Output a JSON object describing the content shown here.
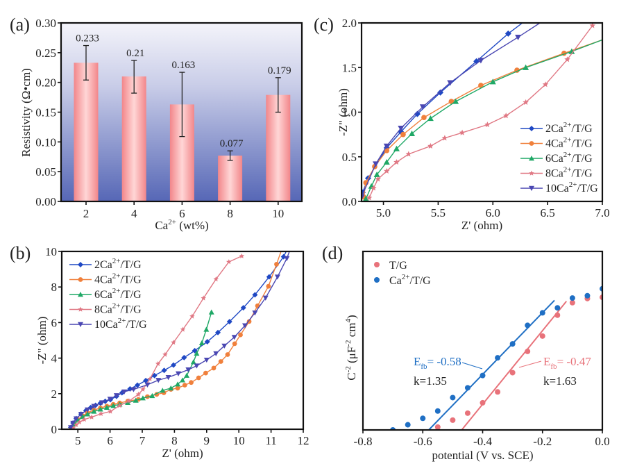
{
  "chart_data": [
    {
      "id": "a",
      "panel_label": "(a)",
      "type": "bar",
      "title": "",
      "xlabel": "Ca",
      "xlabel_sup": "2+",
      "xlabel_suffix": " (wt%)",
      "ylabel": "Resistivity (Ω•cm)",
      "categories": [
        "2",
        "4",
        "6",
        "8",
        "10"
      ],
      "values": [
        0.233,
        0.21,
        0.163,
        0.077,
        0.179
      ],
      "value_labels": [
        "0.233",
        "0.21",
        "0.163",
        "0.077",
        "0.179"
      ],
      "error_low": [
        0.204,
        0.182,
        0.109,
        0.069,
        0.15
      ],
      "error_high": [
        0.262,
        0.237,
        0.217,
        0.085,
        0.208
      ],
      "ylim": [
        0,
        0.3
      ],
      "yticks": [
        "0.00",
        "0.05",
        "0.10",
        "0.15",
        "0.20",
        "0.25",
        "0.30"
      ],
      "grid": false,
      "colors": {
        "bar_edge": "#f2868a",
        "bar_center": "#ffd6d6",
        "bg_top": "#f4f4fa",
        "bg_bottom": "#5667b6",
        "error": "#222222"
      }
    },
    {
      "id": "b",
      "panel_label": "(b)",
      "type": "line",
      "xlabel": "Z' (ohm)",
      "ylabel": "-Z\" (ohm)",
      "xlim": [
        4.5,
        12
      ],
      "ylim": [
        0,
        10
      ],
      "xticks": [
        5,
        6,
        7,
        8,
        9,
        10,
        11,
        12
      ],
      "yticks": [
        0,
        2,
        4,
        6,
        8,
        10
      ],
      "legend_position": "top-left",
      "series": [
        {
          "name": "2Ca2+/T/G",
          "label_pre": "2Ca",
          "label_sup": "2+",
          "label_post": "/T/G",
          "color": "#1f48c4",
          "marker": "diamond",
          "x": [
            4.78,
            4.85,
            4.95,
            5.1,
            5.25,
            5.4,
            5.55,
            5.7,
            5.85,
            6.01,
            6.2,
            6.37,
            6.62,
            6.85,
            7.11,
            7.38,
            7.68,
            7.97,
            8.3,
            8.63,
            9.02,
            9.35,
            9.71,
            10.14,
            10.5,
            10.94,
            11.39,
            11.47
          ],
          "y": [
            0.1,
            0.35,
            0.6,
            0.85,
            1.05,
            1.22,
            1.35,
            1.47,
            1.57,
            1.66,
            1.85,
            2.05,
            2.27,
            2.48,
            2.74,
            3.02,
            3.31,
            3.61,
            4.03,
            4.42,
            4.92,
            5.44,
            6.05,
            6.83,
            7.56,
            8.57,
            9.7,
            10.0
          ]
        },
        {
          "name": "4Ca2+/T/G",
          "label_pre": "4Ca",
          "label_sup": "2+",
          "label_post": "/T/G",
          "color": "#f0803c",
          "marker": "circle",
          "x": [
            4.8,
            4.88,
            5.0,
            5.15,
            5.3,
            5.5,
            5.7,
            5.9,
            6.1,
            6.3,
            6.55,
            6.88,
            7.16,
            7.45,
            7.67,
            7.89,
            8.1,
            8.32,
            8.52,
            8.75,
            8.97,
            9.22,
            9.44,
            9.65,
            9.87,
            10.05,
            10.32,
            10.58,
            10.92,
            11.17,
            11.31
          ],
          "y": [
            0.05,
            0.3,
            0.55,
            0.75,
            0.92,
            1.08,
            1.2,
            1.3,
            1.4,
            1.48,
            1.58,
            1.68,
            1.83,
            1.96,
            2.05,
            2.24,
            2.31,
            2.48,
            2.63,
            2.89,
            3.16,
            3.44,
            3.81,
            4.2,
            4.81,
            5.31,
            6.06,
            6.94,
            8.04,
            9.28,
            10.0
          ]
        },
        {
          "name": "6Ca2+/T/G",
          "label_pre": "6Ca",
          "label_sup": "2+",
          "label_post": "/T/G",
          "color": "#1fa866",
          "marker": "triangle-up",
          "x": [
            4.82,
            4.9,
            5.0,
            5.15,
            5.3,
            5.5,
            5.7,
            5.9,
            6.1,
            6.3,
            6.55,
            6.8,
            7.02,
            7.31,
            7.63,
            7.89,
            8.1,
            8.25,
            8.38,
            8.59,
            8.69,
            8.85,
            8.99,
            9.15
          ],
          "y": [
            0.05,
            0.28,
            0.5,
            0.7,
            0.85,
            1.0,
            1.12,
            1.22,
            1.32,
            1.4,
            1.49,
            1.62,
            1.75,
            1.88,
            2.18,
            2.31,
            2.53,
            2.76,
            3.02,
            3.78,
            4.26,
            4.85,
            5.61,
            6.58
          ]
        },
        {
          "name": "8Ca2+/T/G",
          "label_pre": "8Ca",
          "label_sup": "2+",
          "label_post": "/T/G",
          "color": "#e07884",
          "marker": "star",
          "x": [
            4.85,
            4.95,
            5.05,
            5.2,
            5.43,
            5.72,
            6.01,
            6.3,
            6.59,
            6.88,
            7.02,
            7.24,
            7.49,
            7.71,
            7.97,
            8.26,
            8.55,
            8.9,
            9.29,
            9.69,
            10.09
          ],
          "y": [
            0.05,
            0.25,
            0.4,
            0.55,
            0.68,
            0.87,
            1.0,
            1.33,
            1.59,
            1.96,
            2.24,
            2.83,
            3.68,
            4.2,
            4.88,
            5.61,
            6.35,
            7.37,
            8.44,
            9.41,
            9.74
          ]
        },
        {
          "name": "10Ca2+/T/G",
          "label_pre": "10Ca",
          "label_sup": "2+",
          "label_post": "/T/G",
          "color": "#4a47b2",
          "marker": "triangle-down",
          "x": [
            4.78,
            4.85,
            4.95,
            5.1,
            5.3,
            5.5,
            5.75,
            6.0,
            6.2,
            6.44,
            6.73,
            7.16,
            7.5,
            7.81,
            8.12,
            8.43,
            8.69,
            9.0,
            9.29,
            9.55,
            9.86,
            10.19,
            10.5,
            10.83,
            11.2,
            11.49,
            11.57
          ],
          "y": [
            0.1,
            0.35,
            0.6,
            0.85,
            1.1,
            1.3,
            1.5,
            1.7,
            1.9,
            2.11,
            2.24,
            2.5,
            2.76,
            2.92,
            3.13,
            3.35,
            3.57,
            3.9,
            4.26,
            4.69,
            5.18,
            5.83,
            6.55,
            7.39,
            8.57,
            9.61,
            10.0
          ]
        }
      ]
    },
    {
      "id": "c",
      "panel_label": "(c)",
      "type": "line",
      "xlabel": "Z' (ohm)",
      "ylabel": "-Z\" (ohm)",
      "xlim": [
        4.8,
        7.0
      ],
      "ylim": [
        0,
        2.0
      ],
      "xticks": [
        "5.0",
        "5.5",
        "6.0",
        "6.5",
        "7.0"
      ],
      "yticks": [
        "0.0",
        "0.5",
        "1.0",
        "1.5",
        "2.0"
      ],
      "legend_position": "bottom-right",
      "series": [
        {
          "name": "2Ca2+/T/G",
          "label_pre": "2Ca",
          "label_sup": "2+",
          "label_post": "/T/G",
          "color": "#1f48c4",
          "marker": "diamond",
          "x": [
            4.81,
            4.86,
            5.03,
            5.16,
            5.31,
            5.52,
            5.85,
            6.14,
            6.27
          ],
          "y": [
            0.1,
            0.26,
            0.6,
            0.78,
            0.98,
            1.22,
            1.57,
            1.88,
            2.0
          ]
        },
        {
          "name": "4Ca2+/T/G",
          "label_pre": "4Ca",
          "label_sup": "2+",
          "label_post": "/T/G",
          "color": "#f0803c",
          "marker": "circle",
          "x": [
            4.82,
            4.84,
            4.92,
            5.03,
            5.18,
            5.37,
            5.62,
            5.89,
            6.22,
            6.65,
            7.0
          ],
          "y": [
            0.05,
            0.21,
            0.39,
            0.57,
            0.75,
            0.94,
            1.12,
            1.3,
            1.47,
            1.66,
            1.81
          ]
        },
        {
          "name": "6Ca2+/T/G",
          "label_pre": "6Ca",
          "label_sup": "2+",
          "label_post": "/T/G",
          "color": "#1fa866",
          "marker": "triangle-up",
          "x": [
            4.84,
            4.89,
            4.94,
            5.03,
            5.12,
            5.26,
            5.43,
            5.66,
            6.0,
            6.3,
            6.72,
            7.0
          ],
          "y": [
            0.03,
            0.17,
            0.3,
            0.44,
            0.59,
            0.76,
            0.93,
            1.12,
            1.34,
            1.5,
            1.68,
            1.81
          ]
        },
        {
          "name": "8Ca2+/T/G",
          "label_pre": "8Ca",
          "label_sup": "2+",
          "label_post": "/T/G",
          "color": "#e07884",
          "marker": "star",
          "x": [
            4.87,
            4.91,
            4.95,
            5.03,
            5.12,
            5.23,
            5.43,
            5.56,
            5.72,
            5.95,
            6.12,
            6.3,
            6.48,
            6.68,
            6.91
          ],
          "y": [
            0.04,
            0.15,
            0.25,
            0.34,
            0.44,
            0.53,
            0.62,
            0.71,
            0.77,
            0.86,
            0.96,
            1.11,
            1.31,
            1.59,
            1.97
          ]
        },
        {
          "name": "10Ca2+/T/G",
          "label_pre": "10Ca",
          "label_sup": "2+",
          "label_post": "/T/G",
          "color": "#4a47b2",
          "marker": "triangle-down",
          "x": [
            4.8,
            4.93,
            5.03,
            5.16,
            5.36,
            5.61,
            5.89,
            6.23,
            6.43
          ],
          "y": [
            0.05,
            0.42,
            0.62,
            0.82,
            1.06,
            1.33,
            1.58,
            1.84,
            2.0
          ]
        }
      ]
    },
    {
      "id": "d",
      "panel_label": "(d)",
      "type": "scatter",
      "xlabel": "potential (V vs. SCE)",
      "ylabel_pre": "C",
      "ylabel_sup1": "-2",
      "ylabel_mid": " (μF",
      "ylabel_sup2": "-2",
      "ylabel_mid2": " cm",
      "ylabel_sup3": "4",
      "ylabel_post": ")",
      "xlim": [
        -0.8,
        0.0
      ],
      "ylim": [
        0,
        10
      ],
      "y_units_note": "relative (no y tick labels shown)",
      "xticks": [
        "-0.8",
        "-0.6",
        "-0.4",
        "-0.2",
        "0.0"
      ],
      "legend_position": "top-left",
      "series": [
        {
          "name": "T/G",
          "color": "#e8727a",
          "marker": "circle",
          "x": [
            -0.55,
            -0.5,
            -0.45,
            -0.4,
            -0.35,
            -0.3,
            -0.25,
            -0.2,
            -0.15,
            -0.1,
            -0.05,
            0.0
          ],
          "y": [
            0.16,
            0.55,
            0.94,
            1.52,
            2.13,
            3.21,
            4.4,
            5.26,
            6.43,
            7.13,
            7.36,
            7.43
          ],
          "fit": {
            "x": [
              -0.47,
              -0.12
            ],
            "y": [
              0,
              7.21
            ]
          },
          "annotation": {
            "efb_pre": "E",
            "efb_sub": "fb",
            "efb_text": "= -0.47",
            "k_text": "k=1.63",
            "Efb": -0.47,
            "k": 1.63
          }
        },
        {
          "name": "Ca2+/T/G",
          "label_pre": "Ca",
          "label_sup": "2+",
          "label_post": "/T/G",
          "color": "#1f6fc4",
          "marker": "circle",
          "x": [
            -0.7,
            -0.65,
            -0.6,
            -0.55,
            -0.5,
            -0.45,
            -0.4,
            -0.35,
            -0.3,
            -0.25,
            -0.2,
            -0.15,
            -0.1,
            -0.05,
            0.0
          ],
          "y": [
            0.0,
            0.29,
            0.65,
            1.06,
            1.81,
            2.36,
            3.05,
            4.04,
            4.82,
            5.86,
            6.56,
            6.84,
            7.39,
            7.52,
            7.91
          ],
          "fit": {
            "x": [
              -0.58,
              -0.16
            ],
            "y": [
              0,
              7.26
            ]
          },
          "annotation": {
            "efb_pre": "E",
            "efb_sub": "fb",
            "efb_text": "= -0.58",
            "k_text": "k=1.35",
            "Efb": -0.58,
            "k": 1.35
          }
        }
      ]
    }
  ]
}
